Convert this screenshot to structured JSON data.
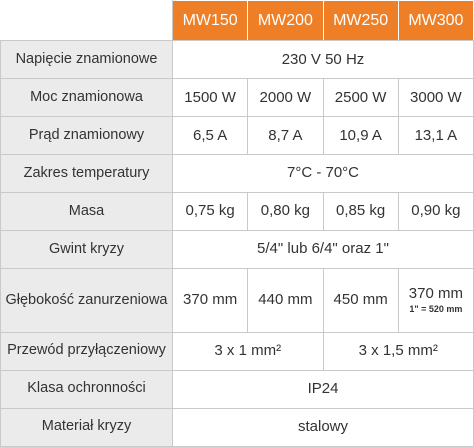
{
  "header": {
    "models": [
      "MW150",
      "MW200",
      "MW250",
      "MW300"
    ]
  },
  "rows": [
    {
      "label": "Napięcie znamionowe",
      "cells": [
        "230 V 50 Hz"
      ]
    },
    {
      "label": "Moc znamionowa",
      "cells": [
        "1500 W",
        "2000 W",
        "2500 W",
        "3000 W"
      ]
    },
    {
      "label": "Prąd znamionowy",
      "cells": [
        "6,5 A",
        "8,7 A",
        "10,9 A",
        "13,1 A"
      ]
    },
    {
      "label": "Zakres temperatury",
      "cells": [
        "7°C - 70°C"
      ]
    },
    {
      "label": "Masa",
      "cells": [
        "0,75 kg",
        "0,80 kg",
        "0,85 kg",
        "0,90 kg"
      ]
    },
    {
      "label": "Gwint kryzy",
      "cells": [
        "5/4\" lub 6/4\" oraz 1\""
      ]
    },
    {
      "label": "Głębokość zanurzeniowa",
      "cells": [
        "370 mm",
        "440 mm",
        "450 mm",
        {
          "text": "370 mm",
          "note": "1\" = 520 mm"
        }
      ]
    },
    {
      "label": "Przewód przyłączeniowy",
      "cells": [
        "3 x 1 mm²",
        "3 x 1,5 mm²"
      ]
    },
    {
      "label": "Klasa ochronności",
      "cells": [
        "IP24"
      ]
    },
    {
      "label": "Materiał kryzy",
      "cells": [
        "stalowy"
      ]
    }
  ]
}
